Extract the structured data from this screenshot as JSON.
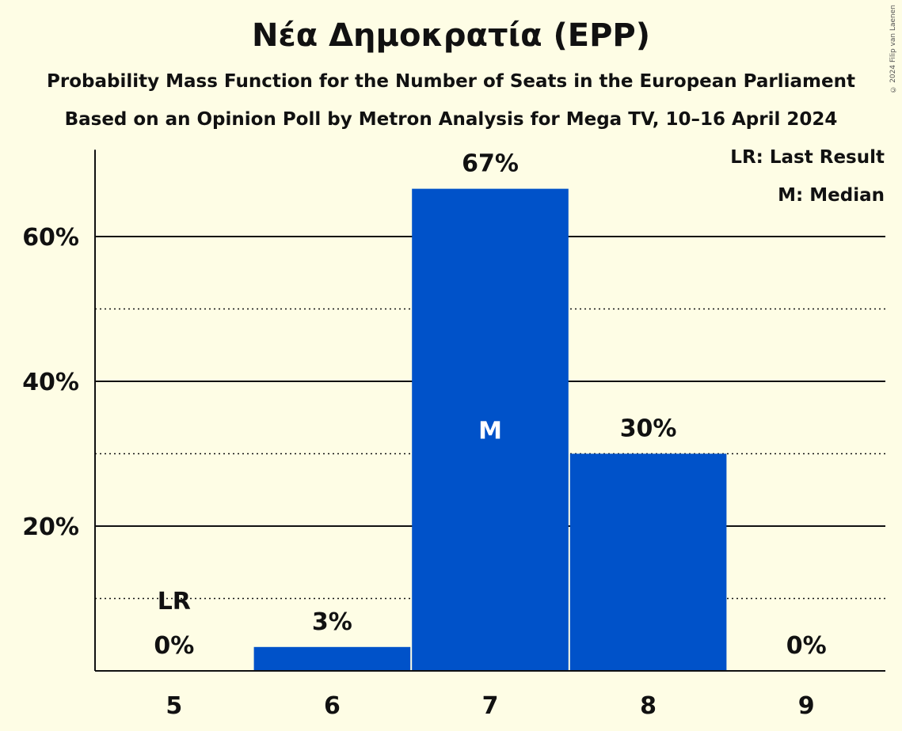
{
  "chart_data": {
    "type": "bar",
    "title": "Νέα Δημοκρατία (EPP)",
    "subtitle": "Probability Mass Function for the Number of Seats in the European Parliament",
    "subtitle2": "Based on an Opinion Poll by Metron Analysis for Mega TV, 10–16 April 2024",
    "categories": [
      "5",
      "6",
      "7",
      "8",
      "9"
    ],
    "values": [
      0,
      3.3,
      66.6,
      30.0,
      0
    ],
    "value_labels": [
      "0%",
      "3%",
      "67%",
      "30%",
      "0%"
    ],
    "bar_color": "#0052c9",
    "ylim": [
      0,
      72
    ],
    "y_ticks": [
      20,
      40,
      60
    ],
    "y_tick_labels": [
      "20%",
      "40%",
      "60%"
    ],
    "minor_gridlines": [
      10,
      30,
      50
    ],
    "last_result_index": 0,
    "last_result_marker": "LR",
    "median_index": 2,
    "median_marker": "M",
    "legend": {
      "position": "top-right",
      "entries": [
        "LR: Last Result",
        "M: Median"
      ]
    }
  },
  "copyright": "© 2024 Filip van Laenen"
}
